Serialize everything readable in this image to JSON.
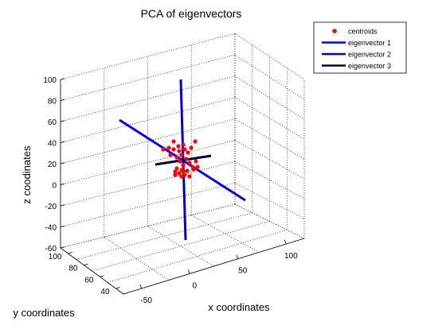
{
  "chart_data": {
    "type": "scatter",
    "title": "PCA of eigenvectors",
    "xlabel": "x coordinates",
    "ylabel": "y coordinates",
    "zlabel": "z coodinates",
    "x_ticks": [
      "-50",
      "0",
      "50",
      "100"
    ],
    "y_ticks": [
      "40",
      "60",
      "80",
      "100"
    ],
    "z_ticks": [
      "100",
      "80",
      "60",
      "40",
      "20",
      "0",
      "-20",
      "-40",
      "-60"
    ],
    "grid": true,
    "legend_placement": "top-right",
    "legend": [
      {
        "label": "centroids",
        "color": "#ff0000",
        "marker": "dot"
      },
      {
        "label": "eigenvector 1",
        "color": "#0000ff",
        "marker": "line"
      },
      {
        "label": "eigenvector 2",
        "color": "#0000cc",
        "marker": "line"
      },
      {
        "label": "eigenvector 3",
        "color": "#000033",
        "marker": "line"
      }
    ],
    "series": [
      {
        "name": "centroids",
        "color": "#ff0000",
        "points": [
          [
            225,
            190
          ],
          [
            228,
            195
          ],
          [
            232,
            188
          ],
          [
            236,
            192
          ],
          [
            240,
            186
          ],
          [
            222,
            198
          ],
          [
            218,
            188
          ],
          [
            230,
            182
          ],
          [
            245,
            178
          ],
          [
            218,
            178
          ],
          [
            205,
            188
          ],
          [
            212,
            186
          ],
          [
            234,
            200
          ],
          [
            226,
            203
          ],
          [
            238,
            205
          ],
          [
            242,
            210
          ],
          [
            230,
            208
          ],
          [
            222,
            212
          ],
          [
            220,
            216
          ],
          [
            228,
            214
          ],
          [
            235,
            215
          ],
          [
            243,
            213
          ],
          [
            248,
            210
          ],
          [
            225,
            218
          ],
          [
            232,
            220
          ],
          [
            238,
            222
          ],
          [
            228,
            222
          ],
          [
            220,
            220
          ],
          [
            246,
            203
          ],
          [
            224,
            184
          ],
          [
            214,
            195
          ],
          [
            230,
            215
          ]
        ]
      },
      {
        "name": "eigenvector 1",
        "color": "#0000ff",
        "segment": [
          [
            150,
            151
          ],
          [
            308,
            252
          ]
        ]
      },
      {
        "name": "eigenvector 2",
        "color": "#0000cc",
        "segment": [
          [
            227,
            100
          ],
          [
            233,
            302
          ]
        ]
      },
      {
        "name": "eigenvector 3",
        "color": "#000033",
        "segment": [
          [
            195,
            207
          ],
          [
            265,
            196
          ]
        ]
      }
    ]
  }
}
